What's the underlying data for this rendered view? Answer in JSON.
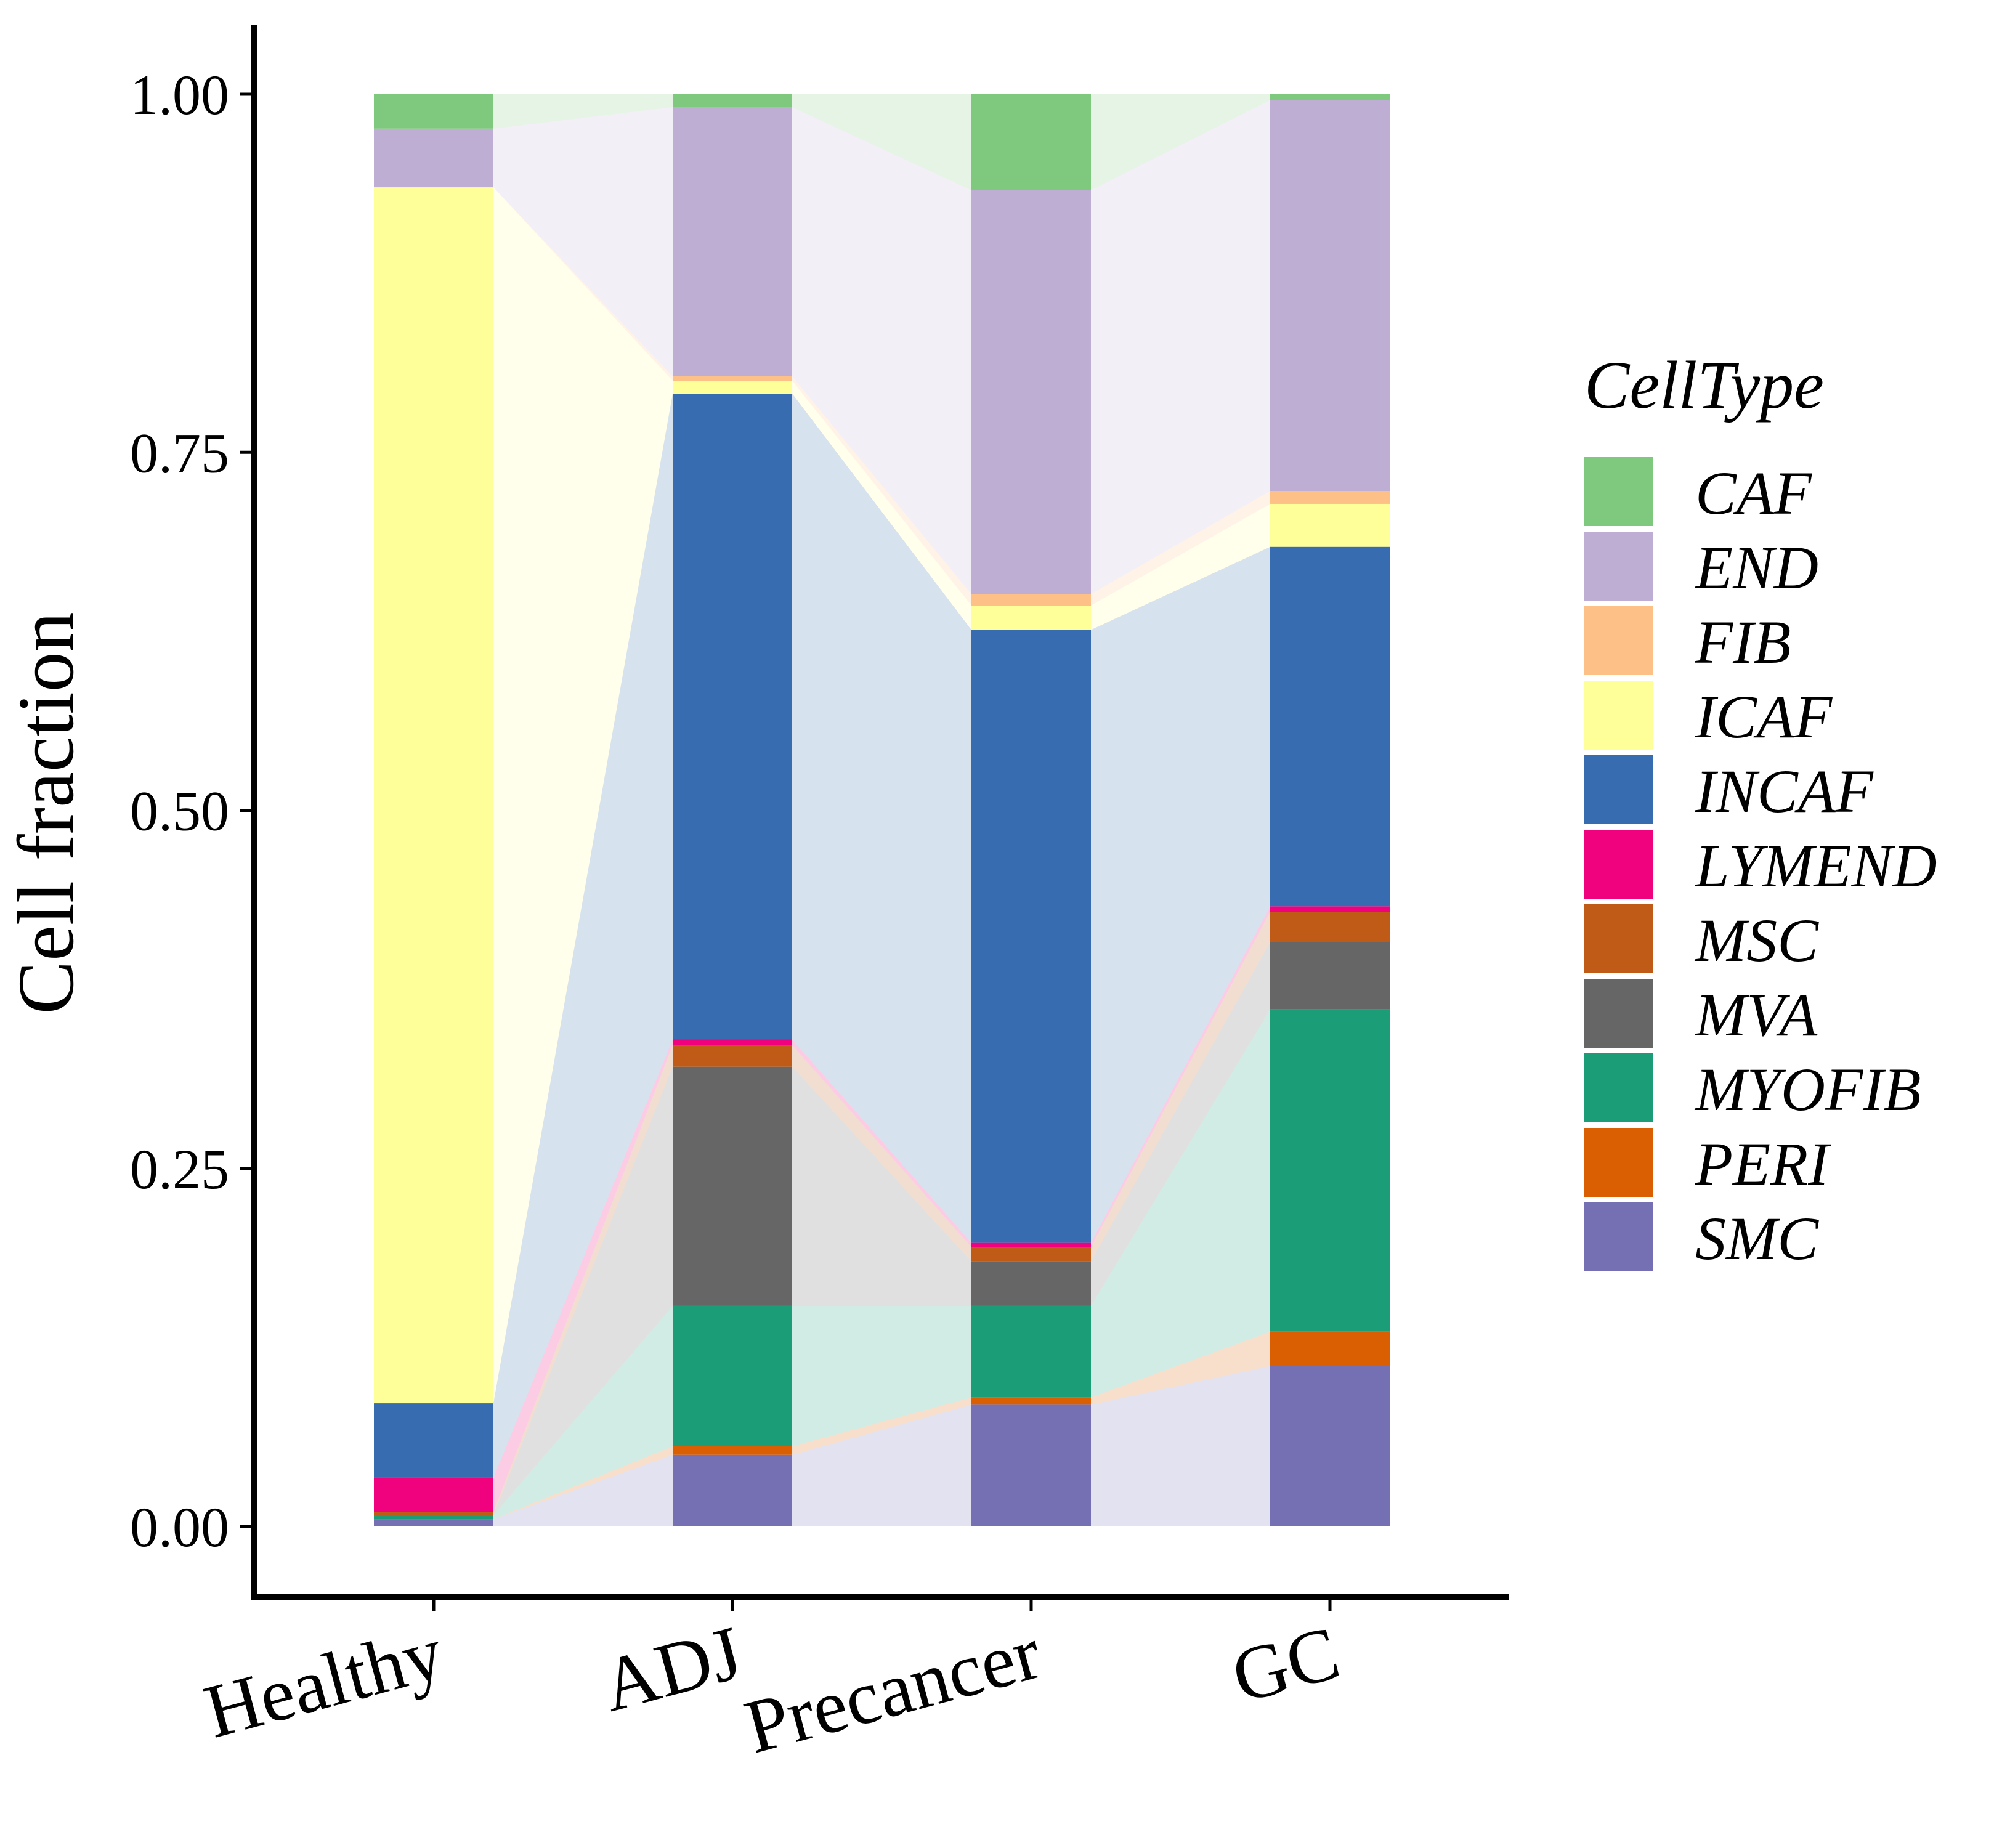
{
  "chart_data": {
    "type": "bar",
    "subtype": "stacked-proportion-alluvial",
    "title": "",
    "xlabel": "",
    "ylabel": "Cell fraction",
    "ylim": [
      0,
      1
    ],
    "yticks": [
      "0.00",
      "0.25",
      "0.50",
      "0.75",
      "1.00"
    ],
    "ytick_values": [
      0,
      0.25,
      0.5,
      0.75,
      1.0
    ],
    "categories": [
      "Healthy",
      "ADJ",
      "Precancer",
      "GC"
    ],
    "legend": {
      "title": "CellType",
      "position": "right"
    },
    "series": [
      {
        "name": "SMC",
        "color": "#7570B3",
        "values": [
          0.005,
          0.05,
          0.085,
          0.112
        ]
      },
      {
        "name": "PERI",
        "color": "#D95F02",
        "values": [
          0.0,
          0.006,
          0.005,
          0.024
        ]
      },
      {
        "name": "MYOFIB",
        "color": "#1B9E77",
        "values": [
          0.003,
          0.098,
          0.064,
          0.225
        ]
      },
      {
        "name": "MVA",
        "color": "#666666",
        "values": [
          0.0,
          0.167,
          0.031,
          0.047
        ]
      },
      {
        "name": "MSC",
        "color": "#BF5B17",
        "values": [
          0.002,
          0.015,
          0.01,
          0.021
        ]
      },
      {
        "name": "LYMEND",
        "color": "#F0027F",
        "values": [
          0.024,
          0.004,
          0.003,
          0.004
        ]
      },
      {
        "name": "INCAF",
        "color": "#386CB0",
        "values": [
          0.052,
          0.451,
          0.428,
          0.251
        ]
      },
      {
        "name": "ICAF",
        "color": "#FFFF99",
        "values": [
          0.849,
          0.009,
          0.017,
          0.03
        ]
      },
      {
        "name": "FIB",
        "color": "#FDC086",
        "values": [
          0.0,
          0.003,
          0.008,
          0.009
        ]
      },
      {
        "name": "END",
        "color": "#BEAED4",
        "values": [
          0.041,
          0.188,
          0.282,
          0.273
        ]
      },
      {
        "name": "CAF",
        "color": "#7FC97F",
        "values": [
          0.024,
          0.009,
          0.067,
          0.004
        ]
      }
    ],
    "legend_order": [
      "CAF",
      "END",
      "FIB",
      "ICAF",
      "INCAF",
      "LYMEND",
      "MSC",
      "MVA",
      "MYOFIB",
      "PERI",
      "SMC"
    ]
  }
}
